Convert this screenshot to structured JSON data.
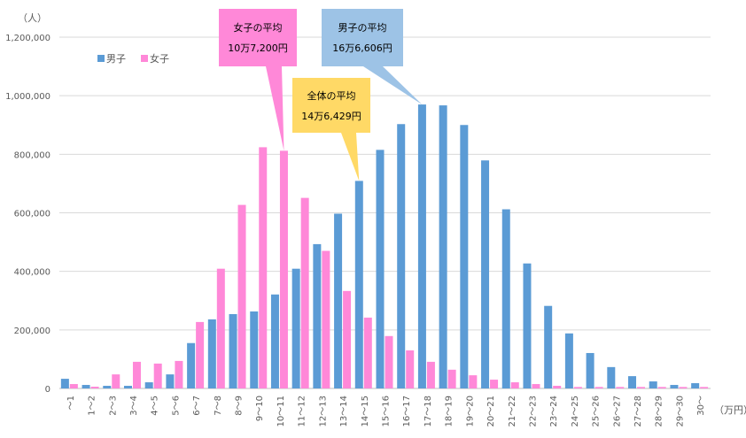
{
  "chart_data": {
    "type": "bar",
    "y_unit_label": "（人）",
    "x_unit_label": "（万円）",
    "ylim": [
      0,
      1200000
    ],
    "yticks": [
      "0",
      "200,000",
      "400,000",
      "600,000",
      "800,000",
      "1,000,000",
      "1,200,000"
    ],
    "grid": true,
    "legend_position": "top-left",
    "categories": [
      "～1",
      "1～2",
      "2～3",
      "3～4",
      "4～5",
      "5～6",
      "6～7",
      "7～8",
      "8～9",
      "9～10",
      "10～11",
      "11～12",
      "12～13",
      "13～14",
      "14～15",
      "15～16",
      "16～17",
      "17～18",
      "18～19",
      "19～20",
      "20～21",
      "21～22",
      "22～23",
      "23～24",
      "24～25",
      "25～26",
      "26～27",
      "27～28",
      "28～29",
      "29～30",
      "30～"
    ],
    "series": [
      {
        "name": "男子",
        "color": "#5b9bd5",
        "values": [
          33000,
          12000,
          9000,
          9000,
          21000,
          48000,
          155000,
          236000,
          254000,
          263000,
          321000,
          409000,
          493000,
          597000,
          709000,
          815000,
          903000,
          970000,
          967000,
          900000,
          779000,
          612000,
          427000,
          282000,
          188000,
          121000,
          73000,
          42000,
          24000,
          12000,
          18000
        ]
      },
      {
        "name": "女子",
        "color": "#ff88d8",
        "values": [
          15000,
          6000,
          48000,
          91000,
          85000,
          94000,
          227000,
          409000,
          627000,
          824000,
          812000,
          651000,
          470000,
          333000,
          242000,
          179000,
          130000,
          91000,
          64000,
          45000,
          30000,
          21000,
          15000,
          9000,
          5000,
          5000,
          5000,
          5000,
          5000,
          5000,
          5000
        ]
      }
    ],
    "annotations": [
      {
        "id": "female",
        "line1": "女子の平均",
        "line2": "10万7,200円",
        "color": "#ff88d8",
        "category": "10～11",
        "series": 1
      },
      {
        "id": "male",
        "line1": "男子の平均",
        "line2": "16万6,606円",
        "color": "#9dc3e6",
        "category": "17～18",
        "series": 0
      },
      {
        "id": "all",
        "line1": "全体の平均",
        "line2": "14万6,429円",
        "color": "#ffd966",
        "category": "14～15",
        "series": 0
      }
    ]
  }
}
